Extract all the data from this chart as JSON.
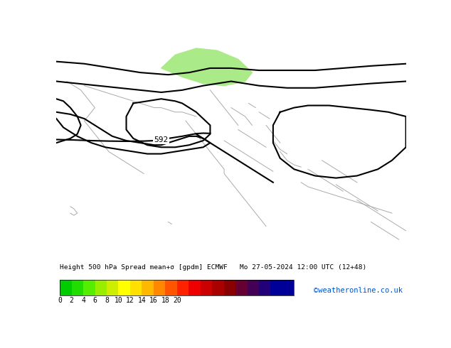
{
  "title": "Height 500 hPa Spread mean+σ [gpdm] ECMWF",
  "title2": "Mo 27-05-2024 12:00 UTC (12+48)",
  "map_bg": "#00DD00",
  "light_green": "#AAEA88",
  "contour_color": "#000000",
  "coast_color": "#AAAAAA",
  "label_592": "592",
  "watermark": "©weatheronline.co.uk",
  "watermark_color": "#0055CC",
  "fig_width": 6.34,
  "fig_height": 4.9,
  "dpi": 100,
  "cbar_colors": [
    "#00CC00",
    "#22DD00",
    "#55EE00",
    "#99EE00",
    "#CCEE00",
    "#FFFF00",
    "#FFE000",
    "#FFB800",
    "#FF8800",
    "#FF5500",
    "#FF2200",
    "#EE0000",
    "#CC0000",
    "#AA0000",
    "#880000",
    "#660033",
    "#440055",
    "#220077",
    "#000099",
    "#000099"
  ],
  "cbar_ticks": [
    0,
    2,
    4,
    6,
    8,
    10,
    12,
    14,
    16,
    18,
    20
  ]
}
